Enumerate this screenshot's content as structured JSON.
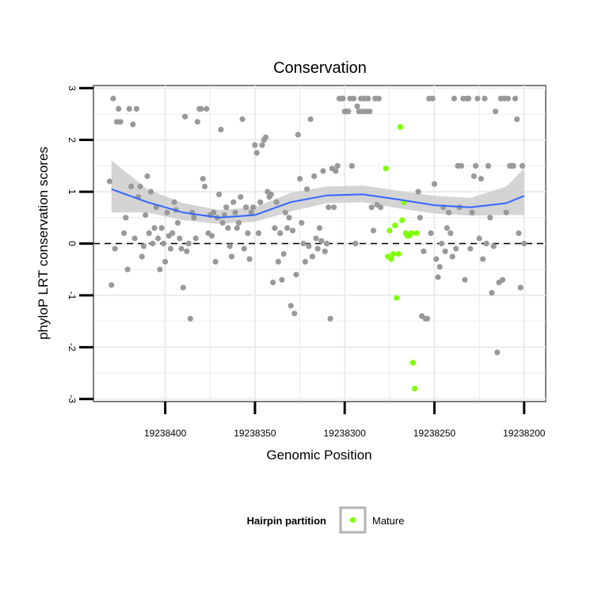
{
  "chart_data": {
    "type": "scatter",
    "title": "Conservation",
    "xlabel": "Genomic Position",
    "ylabel": "phyloP LRT conservation scores",
    "x_reversed": true,
    "xlim": [
      19238440,
      19238188
    ],
    "ylim": [
      -3.05,
      3.05
    ],
    "x_ticks": [
      19238400,
      19238350,
      19238300,
      19238250,
      19238200
    ],
    "y_ticks": [
      -3,
      -2,
      -1,
      0,
      1,
      2,
      3
    ],
    "reference_line_y": 0,
    "grid": true,
    "colors": {
      "other": "#999999",
      "mature": "#7fff00",
      "smooth": "#3366ff",
      "band": "#cccccc",
      "panel": "#ebebeb"
    },
    "legend": {
      "title": "Hairpin partition",
      "placement": "bottom",
      "entries": [
        {
          "label": "Mature",
          "color": "#7fff00"
        }
      ]
    },
    "smooth_fit": {
      "x": [
        19238430,
        19238410,
        19238390,
        19238370,
        19238350,
        19238330,
        19238310,
        19238290,
        19238270,
        19238250,
        19238230,
        19238210,
        19238200
      ],
      "y": [
        1.05,
        0.8,
        0.6,
        0.5,
        0.55,
        0.8,
        0.93,
        0.95,
        0.85,
        0.74,
        0.7,
        0.78,
        0.92
      ],
      "lower": [
        0.6,
        0.6,
        0.45,
        0.38,
        0.42,
        0.62,
        0.78,
        0.8,
        0.68,
        0.58,
        0.54,
        0.55,
        0.55
      ],
      "upper": [
        1.6,
        1.05,
        0.78,
        0.65,
        0.7,
        0.98,
        1.1,
        1.12,
        1.02,
        0.92,
        0.88,
        1.1,
        1.45
      ]
    },
    "series": [
      {
        "name": "Other",
        "points": [
          [
            19238431,
            1.2
          ],
          [
            19238430,
            -0.8
          ],
          [
            19238429,
            2.8
          ],
          [
            19238428,
            -0.1
          ],
          [
            19238427,
            2.35
          ],
          [
            19238426,
            2.6
          ],
          [
            19238425,
            2.35
          ],
          [
            19238423,
            0.2
          ],
          [
            19238422,
            0.5
          ],
          [
            19238421,
            -0.5
          ],
          [
            19238420,
            2.6
          ],
          [
            19238419,
            1.1
          ],
          [
            19238418,
            2.3
          ],
          [
            19238417,
            0.1
          ],
          [
            19238416,
            2.6
          ],
          [
            19238415,
            0.9
          ],
          [
            19238414,
            1.1
          ],
          [
            19238413,
            -0.25
          ],
          [
            19238412,
            -0.05
          ],
          [
            19238411,
            0.55
          ],
          [
            19238410,
            1.3
          ],
          [
            19238409,
            0.2
          ],
          [
            19238408,
            1.0
          ],
          [
            19238407,
            0.0
          ],
          [
            19238406,
            0.3
          ],
          [
            19238405,
            0.7
          ],
          [
            19238404,
            0.1
          ],
          [
            19238403,
            -0.5
          ],
          [
            19238402,
            0.3
          ],
          [
            19238401,
            0.0
          ],
          [
            19238400,
            -0.35
          ],
          [
            19238399,
            0.6
          ],
          [
            19238398,
            0.15
          ],
          [
            19238397,
            -0.1
          ],
          [
            19238396,
            0.2
          ],
          [
            19238395,
            0.8
          ],
          [
            19238394,
            0.65
          ],
          [
            19238393,
            0.4
          ],
          [
            19238392,
            0.1
          ],
          [
            19238391,
            -0.1
          ],
          [
            19238390,
            -0.85
          ],
          [
            19238389,
            2.45
          ],
          [
            19238388,
            -0.15
          ],
          [
            19238387,
            0.0
          ],
          [
            19238386,
            -1.45
          ],
          [
            19238385,
            0.6
          ],
          [
            19238384,
            0.5
          ],
          [
            19238383,
            0.1
          ],
          [
            19238382,
            2.35
          ],
          [
            19238381,
            2.6
          ],
          [
            19238380,
            2.6
          ],
          [
            19238379,
            1.25
          ],
          [
            19238378,
            1.1
          ],
          [
            19238377,
            2.6
          ],
          [
            19238376,
            0.2
          ],
          [
            19238375,
            0.55
          ],
          [
            19238374,
            0.15
          ],
          [
            19238373,
            0.6
          ],
          [
            19238372,
            -0.35
          ],
          [
            19238371,
            0.5
          ],
          [
            19238370,
            0.95
          ],
          [
            19238369,
            2.2
          ],
          [
            19238368,
            0.4
          ],
          [
            19238367,
            0.55
          ],
          [
            19238366,
            0.7
          ],
          [
            19238365,
            0.3
          ],
          [
            19238364,
            -0.05
          ],
          [
            19238363,
            -0.25
          ],
          [
            19238362,
            0.8
          ],
          [
            19238361,
            0.6
          ],
          [
            19238360,
            0.3
          ],
          [
            19238359,
            0.4
          ],
          [
            19238358,
            0.9
          ],
          [
            19238357,
            2.4
          ],
          [
            19238356,
            -0.1
          ],
          [
            19238355,
            0.7
          ],
          [
            19238354,
            0.2
          ],
          [
            19238353,
            -0.3
          ],
          [
            19238352,
            0.6
          ],
          [
            19238351,
            0.7
          ],
          [
            19238350,
            1.9
          ],
          [
            19238349,
            1.75
          ],
          [
            19238348,
            0.2
          ],
          [
            19238347,
            0.8
          ],
          [
            19238346,
            1.9
          ],
          [
            19238345,
            2.0
          ],
          [
            19238344,
            2.05
          ],
          [
            19238343,
            1.0
          ],
          [
            19238342,
            0.9
          ],
          [
            19238341,
            0.95
          ],
          [
            19238340,
            -0.75
          ],
          [
            19238339,
            0.3
          ],
          [
            19238338,
            0.8
          ],
          [
            19238337,
            -0.35
          ],
          [
            19238336,
            0.2
          ],
          [
            19238335,
            -0.7
          ],
          [
            19238334,
            -0.2
          ],
          [
            19238333,
            0.6
          ],
          [
            19238332,
            0.3
          ],
          [
            19238331,
            0.5
          ],
          [
            19238330,
            -1.2
          ],
          [
            19238329,
            0.25
          ],
          [
            19238328,
            -1.35
          ],
          [
            19238327,
            -0.6
          ],
          [
            19238326,
            2.1
          ],
          [
            19238325,
            1.25
          ],
          [
            19238324,
            0.4
          ],
          [
            19238323,
            0.0
          ],
          [
            19238322,
            -0.35
          ],
          [
            19238321,
            1.05
          ],
          [
            19238320,
            -0.05
          ],
          [
            19238319,
            2.4
          ],
          [
            19238318,
            -0.25
          ],
          [
            19238317,
            1.3
          ],
          [
            19238316,
            0.1
          ],
          [
            19238315,
            -0.1
          ],
          [
            19238314,
            0.3
          ],
          [
            19238313,
            0.05
          ],
          [
            19238312,
            1.4
          ],
          [
            19238311,
            -0.15
          ],
          [
            19238310,
            0.0
          ],
          [
            19238309,
            0.7
          ],
          [
            19238308,
            -1.45
          ],
          [
            19238307,
            1.45
          ],
          [
            19238306,
            0.7
          ],
          [
            19238305,
            1.4
          ],
          [
            19238304,
            1.5
          ],
          [
            19238303,
            2.8
          ],
          [
            19238302,
            2.8
          ],
          [
            19238301,
            2.8
          ],
          [
            19238300,
            2.55
          ],
          [
            19238299,
            2.55
          ],
          [
            19238298,
            2.55
          ],
          [
            19238297,
            2.8
          ],
          [
            19238296,
            1.5
          ],
          [
            19238295,
            2.8
          ],
          [
            19238294,
            0.0
          ],
          [
            19238293,
            2.65
          ],
          [
            19238292,
            2.55
          ],
          [
            19238291,
            2.8
          ],
          [
            19238290,
            2.55
          ],
          [
            19238289,
            2.8
          ],
          [
            19238288,
            2.55
          ],
          [
            19238287,
            2.8
          ],
          [
            19238286,
            2.55
          ],
          [
            19238285,
            0.7
          ],
          [
            19238284,
            0.25
          ],
          [
            19238283,
            2.8
          ],
          [
            19238282,
            0.75
          ],
          [
            19238281,
            2.8
          ],
          [
            19238280,
            0.7
          ],
          [
            19238259,
            1.0
          ],
          [
            19238258,
            0.5
          ],
          [
            19238257,
            -1.4
          ],
          [
            19238256,
            -0.15
          ],
          [
            19238255,
            -1.45
          ],
          [
            19238254,
            -1.45
          ],
          [
            19238253,
            2.8
          ],
          [
            19238252,
            0.2
          ],
          [
            19238251,
            2.8
          ],
          [
            19238250,
            1.15
          ],
          [
            19238249,
            -0.3
          ],
          [
            19238248,
            -0.65
          ],
          [
            19238247,
            -0.45
          ],
          [
            19238246,
            0.0
          ],
          [
            19238245,
            0.7
          ],
          [
            19238244,
            -0.15
          ],
          [
            19238243,
            0.3
          ],
          [
            19238242,
            0.6
          ],
          [
            19238241,
            0.2
          ],
          [
            19238240,
            -0.25
          ],
          [
            19238239,
            2.8
          ],
          [
            19238238,
            -0.1
          ],
          [
            19238237,
            1.5
          ],
          [
            19238236,
            0.7
          ],
          [
            19238235,
            1.5
          ],
          [
            19238234,
            2.8
          ],
          [
            19238233,
            -0.7
          ],
          [
            19238232,
            2.8
          ],
          [
            19238231,
            2.8
          ],
          [
            19238230,
            -0.1
          ],
          [
            19238229,
            0.6
          ],
          [
            19238228,
            1.3
          ],
          [
            19238227,
            1.5
          ],
          [
            19238226,
            2.8
          ],
          [
            19238225,
            0.1
          ],
          [
            19238224,
            1.25
          ],
          [
            19238223,
            -0.3
          ],
          [
            19238222,
            2.8
          ],
          [
            19238221,
            0.0
          ],
          [
            19238220,
            1.5
          ],
          [
            19238219,
            0.5
          ],
          [
            19238218,
            -0.95
          ],
          [
            19238217,
            -0.05
          ],
          [
            19238216,
            2.55
          ],
          [
            19238215,
            -2.1
          ],
          [
            19238214,
            -0.75
          ],
          [
            19238213,
            2.8
          ],
          [
            19238212,
            -0.7
          ],
          [
            19238211,
            2.8
          ],
          [
            19238210,
            0.6
          ],
          [
            19238209,
            2.8
          ],
          [
            19238208,
            1.5
          ],
          [
            19238207,
            1.5
          ],
          [
            19238206,
            1.5
          ],
          [
            19238205,
            2.8
          ],
          [
            19238204,
            2.4
          ],
          [
            19238203,
            0.2
          ],
          [
            19238202,
            -0.85
          ],
          [
            19238201,
            1.5
          ],
          [
            19238200,
            0.0
          ]
        ]
      },
      {
        "name": "Mature",
        "points": [
          [
            19238277,
            1.45
          ],
          [
            19238276,
            -0.25
          ],
          [
            19238275,
            0.25
          ],
          [
            19238274,
            -0.3
          ],
          [
            19238273,
            -0.2
          ],
          [
            19238272,
            0.35
          ],
          [
            19238271,
            -1.05
          ],
          [
            19238270,
            -0.2
          ],
          [
            19238269,
            2.25
          ],
          [
            19238268,
            0.45
          ],
          [
            19238267,
            0.8
          ],
          [
            19238266,
            0.2
          ],
          [
            19238265,
            0.15
          ],
          [
            19238264,
            0.15
          ],
          [
            19238263,
            0.2
          ],
          [
            19238262,
            -2.3
          ],
          [
            19238261,
            -2.8
          ],
          [
            19238260,
            0.2
          ]
        ]
      }
    ]
  }
}
